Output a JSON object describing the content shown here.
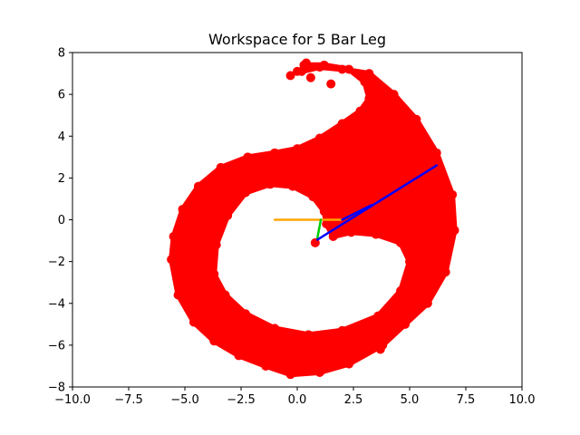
{
  "chart_data": {
    "type": "scatter",
    "title": "Workspace for 5 Bar Leg",
    "xlabel": "",
    "ylabel": "",
    "xlim": [
      -10,
      10
    ],
    "ylim": [
      -8,
      8
    ],
    "xticks": [
      -10,
      -7.5,
      -5,
      -2.5,
      0,
      2.5,
      5,
      7.5,
      10
    ],
    "yticks": [
      -8,
      -6,
      -4,
      -2,
      0,
      2,
      4,
      6,
      8
    ],
    "xtick_labels": [
      "−10.0",
      "−7.5",
      "−5.0",
      "−2.5",
      "0.0",
      "2.5",
      "5.0",
      "7.5",
      "10.0"
    ],
    "ytick_labels": [
      "−8",
      "−6",
      "−4",
      "−2",
      "0",
      "2",
      "4",
      "6",
      "8"
    ],
    "grid": false,
    "workspace": {
      "color": "#ff0000",
      "outer_boundary": [
        [
          -5.6,
          -1.9
        ],
        [
          -5.5,
          -0.8
        ],
        [
          -5.1,
          0.5
        ],
        [
          -4.4,
          1.6
        ],
        [
          -3.4,
          2.5
        ],
        [
          -2.2,
          3.0
        ],
        [
          -1.0,
          3.2
        ],
        [
          0.0,
          3.4
        ],
        [
          1.0,
          3.9
        ],
        [
          2.0,
          4.6
        ],
        [
          2.8,
          5.2
        ],
        [
          3.2,
          5.8
        ],
        [
          3.0,
          6.6
        ],
        [
          2.3,
          7.2
        ],
        [
          1.2,
          7.4
        ],
        [
          0.3,
          7.4
        ],
        [
          0.2,
          7.1
        ],
        [
          1.0,
          7.3
        ],
        [
          2.0,
          7.2
        ],
        [
          3.2,
          7.0
        ],
        [
          4.3,
          6.0
        ],
        [
          5.3,
          4.8
        ],
        [
          6.2,
          3.2
        ],
        [
          6.9,
          1.2
        ],
        [
          7.0,
          -0.5
        ],
        [
          6.6,
          -2.5
        ],
        [
          5.8,
          -4.0
        ],
        [
          4.8,
          -5.0
        ],
        [
          3.8,
          -6.0
        ],
        [
          2.3,
          -6.9
        ],
        [
          1.0,
          -7.3
        ],
        [
          -0.3,
          -7.4
        ],
        [
          -1.4,
          -7.0
        ],
        [
          -2.6,
          -6.5
        ],
        [
          -3.7,
          -5.8
        ],
        [
          -4.6,
          -4.9
        ],
        [
          -5.3,
          -3.6
        ]
      ],
      "inner_boundary": [
        [
          -3.7,
          -2.6
        ],
        [
          -3.6,
          -1.2
        ],
        [
          -3.1,
          0.2
        ],
        [
          -2.3,
          1.3
        ],
        [
          -1.2,
          1.7
        ],
        [
          -0.2,
          1.6
        ],
        [
          0.7,
          1.1
        ],
        [
          1.2,
          0.4
        ],
        [
          1.3,
          -0.2
        ],
        [
          1.6,
          -0.8
        ],
        [
          2.4,
          -0.6
        ],
        [
          3.5,
          -0.7
        ],
        [
          4.6,
          -1.1
        ],
        [
          5.0,
          -2.0
        ],
        [
          4.6,
          -3.4
        ],
        [
          3.6,
          -4.6
        ],
        [
          2.0,
          -5.3
        ],
        [
          0.5,
          -5.5
        ],
        [
          -1.0,
          -5.2
        ],
        [
          -2.3,
          -4.5
        ],
        [
          -3.2,
          -3.6
        ]
      ],
      "extra_points": [
        [
          -0.3,
          6.9
        ],
        [
          0.0,
          7.1
        ],
        [
          0.6,
          6.8
        ],
        [
          0.4,
          7.5
        ],
        [
          1.5,
          6.5
        ],
        [
          3.7,
          -6.2
        ],
        [
          4.4,
          -5.0
        ],
        [
          1.0,
          -7.3
        ],
        [
          -0.2,
          -7.3
        ],
        [
          0.8,
          -1.1
        ]
      ]
    },
    "links": [
      {
        "name": "",
        "color": "#ffa500",
        "x": [
          -1.0,
          2.0
        ],
        "y": [
          0.0,
          0.0
        ]
      },
      {
        "name": "",
        "color": "#00cc00",
        "x": [
          0.9,
          1.05
        ],
        "y": [
          -0.85,
          0.0
        ]
      },
      {
        "name": "",
        "color": "#0000ff",
        "x": [
          0.9,
          6.2
        ],
        "y": [
          -0.95,
          2.6
        ]
      },
      {
        "name": "",
        "color": "#0000ff",
        "x": [
          2.0,
          3.3
        ],
        "y": [
          0.0,
          0.7
        ]
      }
    ]
  }
}
